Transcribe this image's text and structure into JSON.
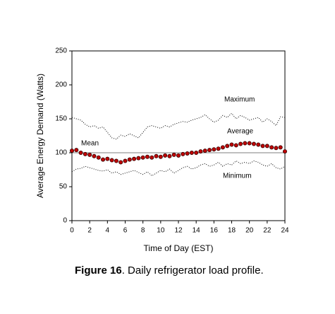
{
  "chart_data": {
    "type": "line",
    "caption_label": "Figure 16",
    "caption_text": ".  Daily refrigerator load profile.",
    "xlabel": "Time of Day (EST)",
    "ylabel": "Average Energy Demand (Watts)",
    "x": [
      0,
      0.5,
      1,
      1.5,
      2,
      2.5,
      3,
      3.5,
      4,
      4.5,
      5,
      5.5,
      6,
      6.5,
      7,
      7.5,
      8,
      8.5,
      9,
      9.5,
      10,
      10.5,
      11,
      11.5,
      12,
      12.5,
      13,
      13.5,
      14,
      14.5,
      15,
      15.5,
      16,
      16.5,
      17,
      17.5,
      18,
      18.5,
      19,
      19.5,
      20,
      20.5,
      21,
      21.5,
      22,
      22.5,
      23,
      23.5,
      24
    ],
    "series": [
      {
        "name": "Maximum",
        "color": "#000000",
        "style": "dotted",
        "values": [
          152,
          150,
          148,
          142,
          138,
          140,
          136,
          138,
          130,
          122,
          120,
          126,
          124,
          128,
          125,
          122,
          130,
          138,
          140,
          138,
          136,
          140,
          138,
          142,
          144,
          146,
          145,
          148,
          150,
          152,
          156,
          150,
          145,
          148,
          155,
          152,
          158,
          150,
          155,
          152,
          148,
          150,
          152,
          145,
          150,
          146,
          140,
          153,
          152
        ]
      },
      {
        "name": "Average",
        "color": "#c00000",
        "style": "markers",
        "values": [
          103,
          104,
          100,
          98,
          97,
          95,
          93,
          90,
          91,
          89,
          88,
          86,
          88,
          90,
          91,
          92,
          93,
          94,
          93,
          95,
          94,
          96,
          95,
          97,
          96,
          98,
          99,
          100,
          100,
          102,
          103,
          104,
          105,
          106,
          108,
          110,
          112,
          111,
          113,
          114,
          114,
          113,
          112,
          110,
          110,
          108,
          107,
          108,
          102
        ]
      },
      {
        "name": "Minimum",
        "color": "#000000",
        "style": "dotted",
        "values": [
          72,
          76,
          77,
          80,
          78,
          76,
          74,
          73,
          75,
          70,
          72,
          68,
          70,
          72,
          74,
          71,
          68,
          72,
          66,
          70,
          74,
          72,
          76,
          70,
          74,
          78,
          80,
          76,
          78,
          82,
          84,
          80,
          82,
          86,
          80,
          84,
          82,
          88,
          84,
          86,
          84,
          88,
          86,
          82,
          80,
          84,
          78,
          76,
          80
        ]
      }
    ],
    "reference_line": {
      "label": "Mean",
      "value": 100
    },
    "xlim": [
      0,
      24
    ],
    "xticks": [
      0,
      2,
      4,
      6,
      8,
      10,
      12,
      14,
      16,
      18,
      20,
      22,
      24
    ],
    "ylim": [
      0,
      250
    ],
    "yticks": [
      0,
      50,
      100,
      150,
      200,
      250
    ]
  }
}
